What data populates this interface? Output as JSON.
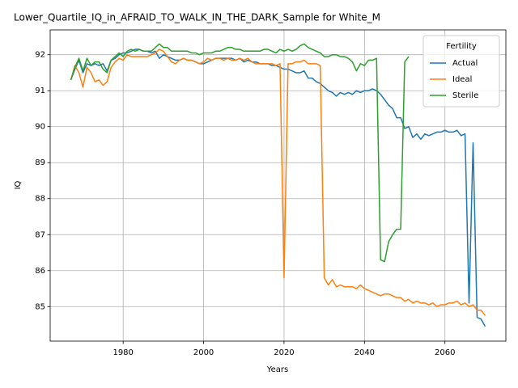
{
  "chart_data": {
    "type": "line",
    "title": "Lower_Quartile_IQ_in_AFRAID_TO_WALK_IN_THE_DARK_Sample for White_M",
    "xlabel": "Years",
    "ylabel": "IQ",
    "x": [
      1967,
      1968,
      1969,
      1970,
      1971,
      1972,
      1973,
      1974,
      1975,
      1976,
      1977,
      1978,
      1979,
      1980,
      1981,
      1982,
      1983,
      1984,
      1985,
      1986,
      1987,
      1988,
      1989,
      1990,
      1991,
      1992,
      1993,
      1994,
      1995,
      1996,
      1997,
      1998,
      1999,
      2000,
      2001,
      2002,
      2003,
      2004,
      2005,
      2006,
      2007,
      2008,
      2009,
      2010,
      2011,
      2012,
      2013,
      2014,
      2015,
      2016,
      2017,
      2018,
      2019,
      2020,
      2021,
      2022,
      2023,
      2024,
      2025,
      2026,
      2027,
      2028,
      2029,
      2030,
      2031,
      2032,
      2033,
      2034,
      2035,
      2036,
      2037,
      2038,
      2039,
      2040,
      2041,
      2042,
      2043,
      2044,
      2045,
      2046,
      2047,
      2048,
      2049,
      2050,
      2051,
      2052,
      2053,
      2054,
      2055,
      2056,
      2057,
      2058,
      2059,
      2060,
      2061,
      2062,
      2063,
      2064,
      2065,
      2066,
      2067,
      2068,
      2069,
      2070
    ],
    "series": [
      {
        "name": "Actual",
        "color": "#1f77b4",
        "values": [
          91.3,
          91.6,
          91.85,
          91.5,
          91.75,
          91.7,
          91.75,
          91.7,
          91.75,
          91.55,
          91.85,
          91.9,
          92.0,
          92.05,
          92.05,
          92.1,
          92.15,
          92.15,
          92.1,
          92.1,
          92.05,
          92.1,
          91.9,
          92.0,
          91.95,
          91.9,
          91.85,
          91.85,
          91.9,
          91.85,
          91.85,
          91.8,
          91.75,
          91.75,
          91.8,
          91.85,
          91.9,
          91.9,
          91.9,
          91.9,
          91.9,
          91.85,
          91.9,
          91.8,
          91.85,
          91.8,
          91.8,
          91.75,
          91.75,
          91.75,
          91.7,
          91.7,
          91.65,
          91.6,
          91.6,
          91.55,
          91.5,
          91.5,
          91.55,
          91.35,
          91.35,
          91.25,
          91.2,
          91.1,
          91.0,
          90.95,
          90.85,
          90.95,
          90.9,
          90.95,
          90.9,
          91.0,
          90.95,
          91.0,
          91.0,
          91.05,
          91.0,
          90.9,
          90.75,
          90.6,
          90.5,
          90.25,
          90.25,
          89.95,
          90.0,
          89.7,
          89.8,
          89.65,
          89.8,
          89.75,
          89.8,
          89.85,
          89.85,
          89.9,
          89.85,
          89.85,
          89.9,
          89.75,
          89.8,
          85.1,
          89.55,
          84.7,
          84.65,
          84.45
        ]
      },
      {
        "name": "Ideal",
        "color": "#ff7f0e",
        "values": [
          91.3,
          91.7,
          91.5,
          91.1,
          91.65,
          91.5,
          91.25,
          91.3,
          91.15,
          91.25,
          91.65,
          91.8,
          91.9,
          91.85,
          92.0,
          91.95,
          91.95,
          91.95,
          91.95,
          91.95,
          92.0,
          92.05,
          92.15,
          92.1,
          91.95,
          91.8,
          91.75,
          91.85,
          91.9,
          91.85,
          91.85,
          91.8,
          91.75,
          91.8,
          91.9,
          91.85,
          91.9,
          91.9,
          91.85,
          91.9,
          91.85,
          91.85,
          91.9,
          91.85,
          91.9,
          91.8,
          91.75,
          91.75,
          91.75,
          91.75,
          91.75,
          91.7,
          91.75,
          85.8,
          91.75,
          91.75,
          91.8,
          91.8,
          91.85,
          91.75,
          91.75,
          91.75,
          91.7,
          85.8,
          85.6,
          85.75,
          85.55,
          85.6,
          85.55,
          85.55,
          85.55,
          85.5,
          85.6,
          85.5,
          85.45,
          85.4,
          85.35,
          85.3,
          85.35,
          85.35,
          85.3,
          85.25,
          85.25,
          85.15,
          85.2,
          85.1,
          85.15,
          85.1,
          85.1,
          85.05,
          85.1,
          85.0,
          85.05,
          85.05,
          85.1,
          85.1,
          85.15,
          85.05,
          85.1,
          85.0,
          85.05,
          84.9,
          84.9,
          84.75
        ]
      },
      {
        "name": "Sterile",
        "color": "#2ca02c",
        "values": [
          91.3,
          91.65,
          91.9,
          91.55,
          91.9,
          91.7,
          91.8,
          91.8,
          91.6,
          91.5,
          91.85,
          91.95,
          92.05,
          91.95,
          92.1,
          92.15,
          92.1,
          92.15,
          92.1,
          92.1,
          92.1,
          92.2,
          92.3,
          92.2,
          92.2,
          92.1,
          92.1,
          92.1,
          92.1,
          92.1,
          92.05,
          92.05,
          92.0,
          92.05,
          92.05,
          92.05,
          92.1,
          92.1,
          92.15,
          92.2,
          92.2,
          92.15,
          92.15,
          92.1,
          92.1,
          92.1,
          92.1,
          92.1,
          92.15,
          92.15,
          92.1,
          92.05,
          92.15,
          92.1,
          92.15,
          92.1,
          92.15,
          92.25,
          92.3,
          92.2,
          92.15,
          92.1,
          92.05,
          91.95,
          91.95,
          92.0,
          92.0,
          91.95,
          91.95,
          91.9,
          91.8,
          91.55,
          91.75,
          91.7,
          91.85,
          91.85,
          91.9,
          86.3,
          86.25,
          86.8,
          87.0,
          87.15,
          87.15,
          91.8,
          91.95,
          null,
          null,
          null,
          null,
          null,
          null,
          null,
          null,
          null,
          null,
          null,
          null,
          null,
          null,
          null,
          null,
          null,
          null,
          null
        ]
      }
    ],
    "xlim": [
      1961.85,
      2075.15
    ],
    "xticks": [
      1980,
      2000,
      2020,
      2040,
      2060
    ],
    "ylim": [
      84.04,
      92.69
    ],
    "yticks": [
      85,
      86,
      87,
      88,
      89,
      90,
      91,
      92
    ],
    "grid": true,
    "legend_title": "Fertility",
    "legend_loc": "upper right"
  }
}
